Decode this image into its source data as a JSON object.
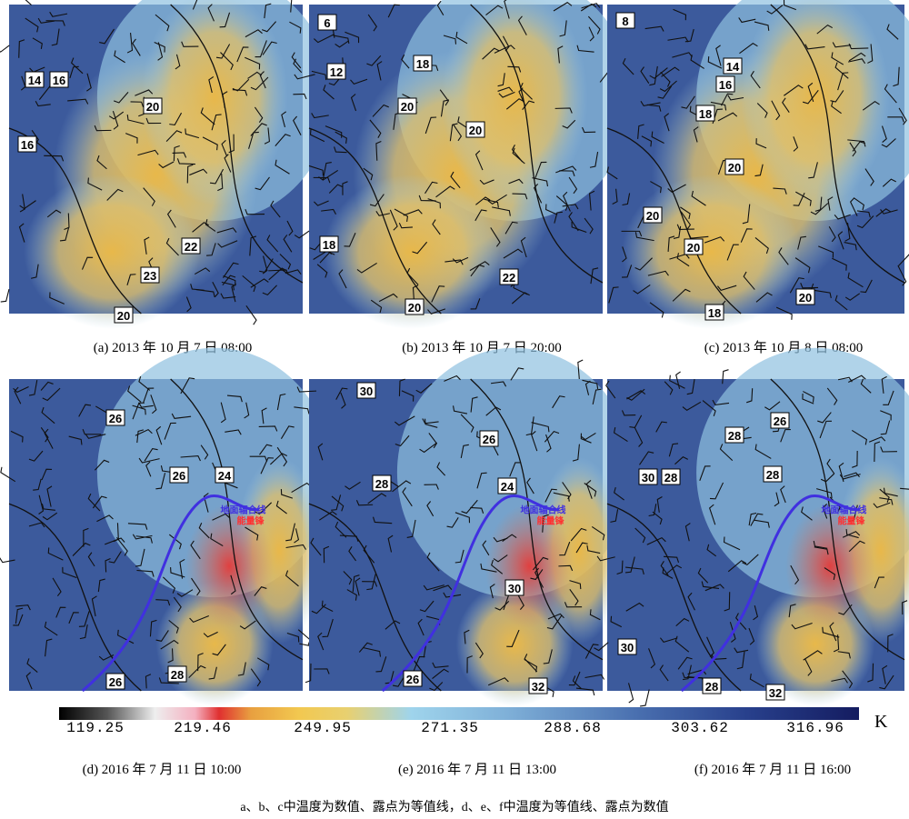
{
  "panels": [
    {
      "caption": "(a) 2013 年 10 月 7 日 08:00",
      "labels": [
        14,
        16,
        16,
        20,
        20,
        22,
        23
      ]
    },
    {
      "caption": "(b) 2013 年 10 月 7 日 20:00",
      "labels": [
        6,
        12,
        18,
        20,
        20,
        18,
        22,
        20
      ]
    },
    {
      "caption": "(c) 2013 年 10 月 8 日 08:00",
      "labels": [
        8,
        14,
        16,
        18,
        20,
        20,
        20,
        20,
        18
      ]
    },
    {
      "caption": "(d) 2016 年 7 月 11 日 10:00",
      "labels": [
        26,
        26,
        24,
        28,
        26
      ],
      "annotations": [
        "地面辐合线",
        "能量锋"
      ]
    },
    {
      "caption": "(e) 2016 年 7 月 11 日 13:00",
      "labels": [
        30,
        26,
        28,
        24,
        30,
        26,
        32
      ],
      "annotations": [
        "地面辐合线",
        "能量锋"
      ]
    },
    {
      "caption": "(f) 2016 年 7 月 11 日 16:00",
      "labels": [
        28,
        26,
        30,
        28,
        28,
        30,
        28,
        32
      ],
      "annotations": [
        "地面辐合线",
        "能量锋"
      ]
    }
  ],
  "colorbar": {
    "ticks": [
      119.25,
      219.46,
      249.95,
      271.35,
      288.68,
      303.62,
      316.96
    ],
    "unit": "K"
  },
  "note": "a、b、c中温度为数值、露点为等值线，d、e、f中温度为等值线、露点为数值"
}
